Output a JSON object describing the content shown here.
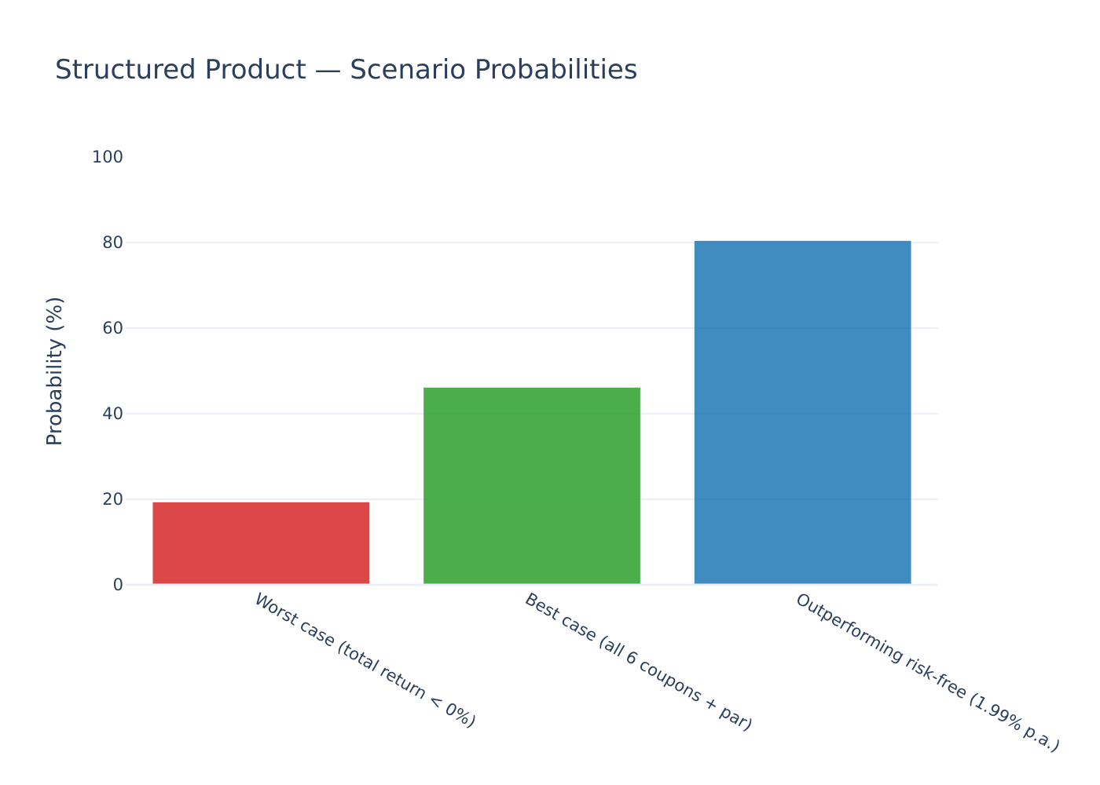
{
  "chart_data": {
    "type": "bar",
    "title": "Structured Product — Scenario Probabilities",
    "xlabel": "",
    "ylabel": "Probability (%)",
    "ylim": [
      0,
      100
    ],
    "yticks": [
      0,
      20,
      40,
      60,
      80,
      100
    ],
    "grid": true,
    "legend": "none",
    "categories": [
      "Worst case (total return < 0%)",
      "Best case (all 6 coupons + par)",
      "Outperforming risk-free (1.99% p.a.)"
    ],
    "values": [
      19.3,
      46.1,
      80.4
    ],
    "colors": [
      "#d62728",
      "#2ca02c",
      "#1f77b4"
    ],
    "bar_opacity": 0.85
  }
}
